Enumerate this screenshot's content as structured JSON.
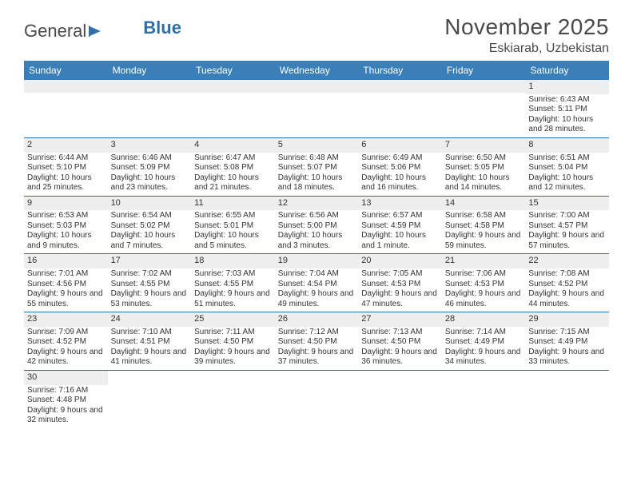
{
  "logo": {
    "textDark": "General",
    "textBlue": "Blue"
  },
  "title": "November 2025",
  "location": "Eskiarab, Uzbekistan",
  "colors": {
    "headerBg": "#3b7fb8",
    "headerText": "#ffffff",
    "rowDivider": "#2f6fa8",
    "dayBarBg": "#eeeeee",
    "bodyBg": "#ffffff",
    "text": "#333333"
  },
  "dayNames": [
    "Sunday",
    "Monday",
    "Tuesday",
    "Wednesday",
    "Thursday",
    "Friday",
    "Saturday"
  ],
  "weeks": [
    [
      {
        "empty": true
      },
      {
        "empty": true
      },
      {
        "empty": true
      },
      {
        "empty": true
      },
      {
        "empty": true
      },
      {
        "empty": true
      },
      {
        "day": "1",
        "sunrise": "Sunrise: 6:43 AM",
        "sunset": "Sunset: 5:11 PM",
        "daylight": "Daylight: 10 hours and 28 minutes."
      }
    ],
    [
      {
        "day": "2",
        "sunrise": "Sunrise: 6:44 AM",
        "sunset": "Sunset: 5:10 PM",
        "daylight": "Daylight: 10 hours and 25 minutes."
      },
      {
        "day": "3",
        "sunrise": "Sunrise: 6:46 AM",
        "sunset": "Sunset: 5:09 PM",
        "daylight": "Daylight: 10 hours and 23 minutes."
      },
      {
        "day": "4",
        "sunrise": "Sunrise: 6:47 AM",
        "sunset": "Sunset: 5:08 PM",
        "daylight": "Daylight: 10 hours and 21 minutes."
      },
      {
        "day": "5",
        "sunrise": "Sunrise: 6:48 AM",
        "sunset": "Sunset: 5:07 PM",
        "daylight": "Daylight: 10 hours and 18 minutes."
      },
      {
        "day": "6",
        "sunrise": "Sunrise: 6:49 AM",
        "sunset": "Sunset: 5:06 PM",
        "daylight": "Daylight: 10 hours and 16 minutes."
      },
      {
        "day": "7",
        "sunrise": "Sunrise: 6:50 AM",
        "sunset": "Sunset: 5:05 PM",
        "daylight": "Daylight: 10 hours and 14 minutes."
      },
      {
        "day": "8",
        "sunrise": "Sunrise: 6:51 AM",
        "sunset": "Sunset: 5:04 PM",
        "daylight": "Daylight: 10 hours and 12 minutes."
      }
    ],
    [
      {
        "day": "9",
        "sunrise": "Sunrise: 6:53 AM",
        "sunset": "Sunset: 5:03 PM",
        "daylight": "Daylight: 10 hours and 9 minutes."
      },
      {
        "day": "10",
        "sunrise": "Sunrise: 6:54 AM",
        "sunset": "Sunset: 5:02 PM",
        "daylight": "Daylight: 10 hours and 7 minutes."
      },
      {
        "day": "11",
        "sunrise": "Sunrise: 6:55 AM",
        "sunset": "Sunset: 5:01 PM",
        "daylight": "Daylight: 10 hours and 5 minutes."
      },
      {
        "day": "12",
        "sunrise": "Sunrise: 6:56 AM",
        "sunset": "Sunset: 5:00 PM",
        "daylight": "Daylight: 10 hours and 3 minutes."
      },
      {
        "day": "13",
        "sunrise": "Sunrise: 6:57 AM",
        "sunset": "Sunset: 4:59 PM",
        "daylight": "Daylight: 10 hours and 1 minute."
      },
      {
        "day": "14",
        "sunrise": "Sunrise: 6:58 AM",
        "sunset": "Sunset: 4:58 PM",
        "daylight": "Daylight: 9 hours and 59 minutes."
      },
      {
        "day": "15",
        "sunrise": "Sunrise: 7:00 AM",
        "sunset": "Sunset: 4:57 PM",
        "daylight": "Daylight: 9 hours and 57 minutes."
      }
    ],
    [
      {
        "day": "16",
        "sunrise": "Sunrise: 7:01 AM",
        "sunset": "Sunset: 4:56 PM",
        "daylight": "Daylight: 9 hours and 55 minutes."
      },
      {
        "day": "17",
        "sunrise": "Sunrise: 7:02 AM",
        "sunset": "Sunset: 4:55 PM",
        "daylight": "Daylight: 9 hours and 53 minutes."
      },
      {
        "day": "18",
        "sunrise": "Sunrise: 7:03 AM",
        "sunset": "Sunset: 4:55 PM",
        "daylight": "Daylight: 9 hours and 51 minutes."
      },
      {
        "day": "19",
        "sunrise": "Sunrise: 7:04 AM",
        "sunset": "Sunset: 4:54 PM",
        "daylight": "Daylight: 9 hours and 49 minutes."
      },
      {
        "day": "20",
        "sunrise": "Sunrise: 7:05 AM",
        "sunset": "Sunset: 4:53 PM",
        "daylight": "Daylight: 9 hours and 47 minutes."
      },
      {
        "day": "21",
        "sunrise": "Sunrise: 7:06 AM",
        "sunset": "Sunset: 4:53 PM",
        "daylight": "Daylight: 9 hours and 46 minutes."
      },
      {
        "day": "22",
        "sunrise": "Sunrise: 7:08 AM",
        "sunset": "Sunset: 4:52 PM",
        "daylight": "Daylight: 9 hours and 44 minutes."
      }
    ],
    [
      {
        "day": "23",
        "sunrise": "Sunrise: 7:09 AM",
        "sunset": "Sunset: 4:52 PM",
        "daylight": "Daylight: 9 hours and 42 minutes."
      },
      {
        "day": "24",
        "sunrise": "Sunrise: 7:10 AM",
        "sunset": "Sunset: 4:51 PM",
        "daylight": "Daylight: 9 hours and 41 minutes."
      },
      {
        "day": "25",
        "sunrise": "Sunrise: 7:11 AM",
        "sunset": "Sunset: 4:50 PM",
        "daylight": "Daylight: 9 hours and 39 minutes."
      },
      {
        "day": "26",
        "sunrise": "Sunrise: 7:12 AM",
        "sunset": "Sunset: 4:50 PM",
        "daylight": "Daylight: 9 hours and 37 minutes."
      },
      {
        "day": "27",
        "sunrise": "Sunrise: 7:13 AM",
        "sunset": "Sunset: 4:50 PM",
        "daylight": "Daylight: 9 hours and 36 minutes."
      },
      {
        "day": "28",
        "sunrise": "Sunrise: 7:14 AM",
        "sunset": "Sunset: 4:49 PM",
        "daylight": "Daylight: 9 hours and 34 minutes."
      },
      {
        "day": "29",
        "sunrise": "Sunrise: 7:15 AM",
        "sunset": "Sunset: 4:49 PM",
        "daylight": "Daylight: 9 hours and 33 minutes."
      }
    ],
    [
      {
        "day": "30",
        "sunrise": "Sunrise: 7:16 AM",
        "sunset": "Sunset: 4:48 PM",
        "daylight": "Daylight: 9 hours and 32 minutes."
      },
      {
        "empty": true
      },
      {
        "empty": true
      },
      {
        "empty": true
      },
      {
        "empty": true
      },
      {
        "empty": true
      },
      {
        "empty": true
      }
    ]
  ]
}
